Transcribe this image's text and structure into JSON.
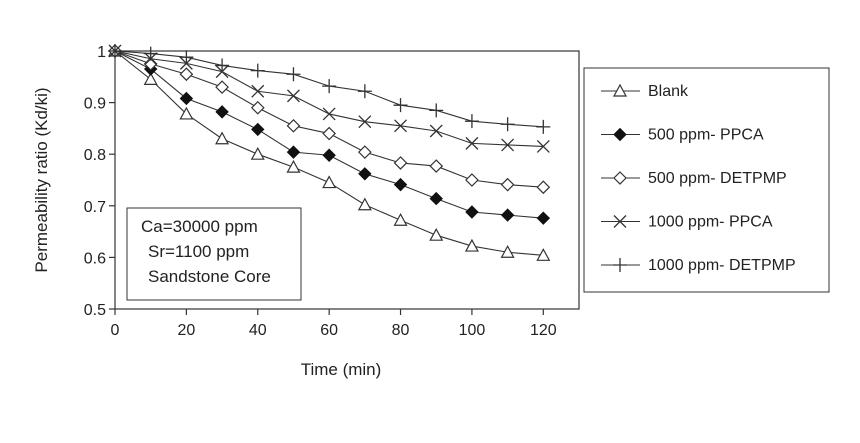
{
  "chart_data": {
    "type": "line",
    "title": "",
    "xlabel": "Time (min)",
    "ylabel": "Permeability ratio (Kd/ki)",
    "xlim": [
      0,
      130
    ],
    "ylim": [
      0.5,
      1
    ],
    "x": [
      0,
      10,
      20,
      30,
      40,
      50,
      60,
      70,
      80,
      90,
      100,
      110,
      120
    ],
    "x_ticks": [
      0,
      20,
      40,
      60,
      80,
      100,
      120
    ],
    "x_tick_labels": [
      "0",
      "20",
      "40",
      "60",
      "80",
      "100",
      "120"
    ],
    "y_ticks": [
      0.5,
      0.6,
      0.7,
      0.8,
      0.9,
      1
    ],
    "y_tick_labels": [
      "0.5",
      "0.6",
      "0.7",
      "0.8",
      "0.9",
      "1"
    ],
    "grid": false,
    "legend_position": "right, outside plot",
    "annotation": [
      "Ca=30000 ppm",
      "Sr=1100 ppm",
      "Sandstone Core"
    ],
    "series": [
      {
        "name": "Blank",
        "marker": "triangle-open",
        "values": [
          1.0,
          0.945,
          0.878,
          0.83,
          0.8,
          0.775,
          0.745,
          0.702,
          0.672,
          0.643,
          0.622,
          0.61,
          0.604
        ]
      },
      {
        "name": "500 ppm- PPCA",
        "marker": "diamond-filled",
        "values": [
          1.0,
          0.965,
          0.908,
          0.882,
          0.848,
          0.804,
          0.798,
          0.762,
          0.741,
          0.714,
          0.688,
          0.682,
          0.676
        ]
      },
      {
        "name": "500 ppm- DETPMP",
        "marker": "diamond-open",
        "values": [
          1.0,
          0.975,
          0.955,
          0.93,
          0.89,
          0.855,
          0.84,
          0.804,
          0.783,
          0.777,
          0.75,
          0.741,
          0.736
        ]
      },
      {
        "name": "1000 ppm- PPCA",
        "marker": "x",
        "values": [
          1.0,
          0.985,
          0.976,
          0.96,
          0.922,
          0.913,
          0.878,
          0.863,
          0.855,
          0.845,
          0.821,
          0.818,
          0.815
        ]
      },
      {
        "name": "1000 ppm- DETPMP",
        "marker": "plus",
        "values": [
          1.0,
          0.995,
          0.988,
          0.972,
          0.962,
          0.955,
          0.932,
          0.922,
          0.895,
          0.885,
          0.864,
          0.858,
          0.853
        ]
      }
    ]
  }
}
